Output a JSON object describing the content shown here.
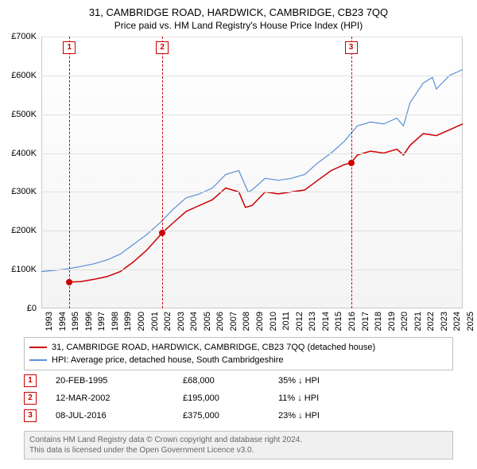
{
  "title": "31, CAMBRIDGE ROAD, HARDWICK, CAMBRIDGE, CB23 7QQ",
  "subtitle": "Price paid vs. HM Land Registry's House Price Index (HPI)",
  "chart": {
    "type": "line",
    "background_gradient": [
      "#ffffff",
      "#f4f4f4"
    ],
    "grid_color": "#e0e0e0",
    "border_color": "#c8c8c8",
    "ylim": [
      0,
      700000
    ],
    "ytick_step": 100000,
    "ylabels": [
      "£0",
      "£100K",
      "£200K",
      "£300K",
      "£400K",
      "£500K",
      "£600K",
      "£700K"
    ],
    "xlim": [
      1993,
      2025
    ],
    "xlabels": [
      "1993",
      "1994",
      "1995",
      "1996",
      "1997",
      "1998",
      "1999",
      "2000",
      "2001",
      "2002",
      "2003",
      "2004",
      "2005",
      "2006",
      "2007",
      "2008",
      "2009",
      "2010",
      "2011",
      "2012",
      "2013",
      "2014",
      "2015",
      "2016",
      "2017",
      "2018",
      "2019",
      "2020",
      "2021",
      "2022",
      "2023",
      "2024",
      "2025"
    ],
    "series": [
      {
        "name": "property",
        "label": "31, CAMBRIDGE ROAD, HARDWICK, CAMBRIDGE, CB23 7QQ (detached house)",
        "color": "#cc0000",
        "width": 1.5,
        "data": [
          [
            1995.13,
            68000
          ],
          [
            1996,
            69000
          ],
          [
            1997,
            75000
          ],
          [
            1998,
            82000
          ],
          [
            1999,
            95000
          ],
          [
            2000,
            120000
          ],
          [
            2001,
            150000
          ],
          [
            2001.8,
            180000
          ],
          [
            2002.19,
            195000
          ],
          [
            2003,
            220000
          ],
          [
            2004,
            250000
          ],
          [
            2005,
            265000
          ],
          [
            2006,
            280000
          ],
          [
            2007,
            310000
          ],
          [
            2008,
            300000
          ],
          [
            2008.5,
            260000
          ],
          [
            2009,
            265000
          ],
          [
            2010,
            300000
          ],
          [
            2011,
            295000
          ],
          [
            2012,
            300000
          ],
          [
            2013,
            305000
          ],
          [
            2014,
            330000
          ],
          [
            2015,
            355000
          ],
          [
            2016,
            370000
          ],
          [
            2016.52,
            375000
          ],
          [
            2017,
            395000
          ],
          [
            2018,
            405000
          ],
          [
            2019,
            400000
          ],
          [
            2020,
            410000
          ],
          [
            2020.5,
            395000
          ],
          [
            2021,
            420000
          ],
          [
            2022,
            450000
          ],
          [
            2023,
            445000
          ],
          [
            2024,
            460000
          ],
          [
            2025,
            475000
          ]
        ]
      },
      {
        "name": "hpi",
        "label": "HPI: Average price, detached house, South Cambridgeshire",
        "color": "#5b8fd6",
        "width": 1.2,
        "data": [
          [
            1993,
            95000
          ],
          [
            1994,
            98000
          ],
          [
            1995,
            102000
          ],
          [
            1996,
            108000
          ],
          [
            1997,
            115000
          ],
          [
            1998,
            125000
          ],
          [
            1999,
            140000
          ],
          [
            2000,
            165000
          ],
          [
            2001,
            190000
          ],
          [
            2002,
            220000
          ],
          [
            2003,
            255000
          ],
          [
            2004,
            285000
          ],
          [
            2005,
            295000
          ],
          [
            2006,
            310000
          ],
          [
            2007,
            345000
          ],
          [
            2008,
            355000
          ],
          [
            2008.7,
            300000
          ],
          [
            2009,
            305000
          ],
          [
            2010,
            335000
          ],
          [
            2011,
            330000
          ],
          [
            2012,
            335000
          ],
          [
            2013,
            345000
          ],
          [
            2014,
            375000
          ],
          [
            2015,
            400000
          ],
          [
            2016,
            430000
          ],
          [
            2017,
            470000
          ],
          [
            2018,
            480000
          ],
          [
            2019,
            475000
          ],
          [
            2020,
            490000
          ],
          [
            2020.5,
            470000
          ],
          [
            2021,
            530000
          ],
          [
            2022,
            580000
          ],
          [
            2022.7,
            595000
          ],
          [
            2023,
            565000
          ],
          [
            2024,
            600000
          ],
          [
            2025,
            615000
          ]
        ]
      }
    ],
    "events": [
      {
        "n": "1",
        "year": 1995.13,
        "value": 68000
      },
      {
        "n": "2",
        "year": 2002.19,
        "value": 195000
      },
      {
        "n": "3",
        "year": 2016.52,
        "value": 375000
      }
    ],
    "event_color": "#cc0000"
  },
  "legend": {
    "items": [
      {
        "color": "#cc0000",
        "label": "31, CAMBRIDGE ROAD, HARDWICK, CAMBRIDGE, CB23 7QQ (detached house)"
      },
      {
        "color": "#5b8fd6",
        "label": "HPI: Average price, detached house, South Cambridgeshire"
      }
    ]
  },
  "transactions": [
    {
      "n": "1",
      "date": "20-FEB-1995",
      "price": "£68,000",
      "diff": "35% ↓ HPI"
    },
    {
      "n": "2",
      "date": "12-MAR-2002",
      "price": "£195,000",
      "diff": "11% ↓ HPI"
    },
    {
      "n": "3",
      "date": "08-JUL-2016",
      "price": "£375,000",
      "diff": "23% ↓ HPI"
    }
  ],
  "license": {
    "line1": "Contains HM Land Registry data © Crown copyright and database right 2024.",
    "line2": "This data is licensed under the Open Government Licence v3.0."
  }
}
